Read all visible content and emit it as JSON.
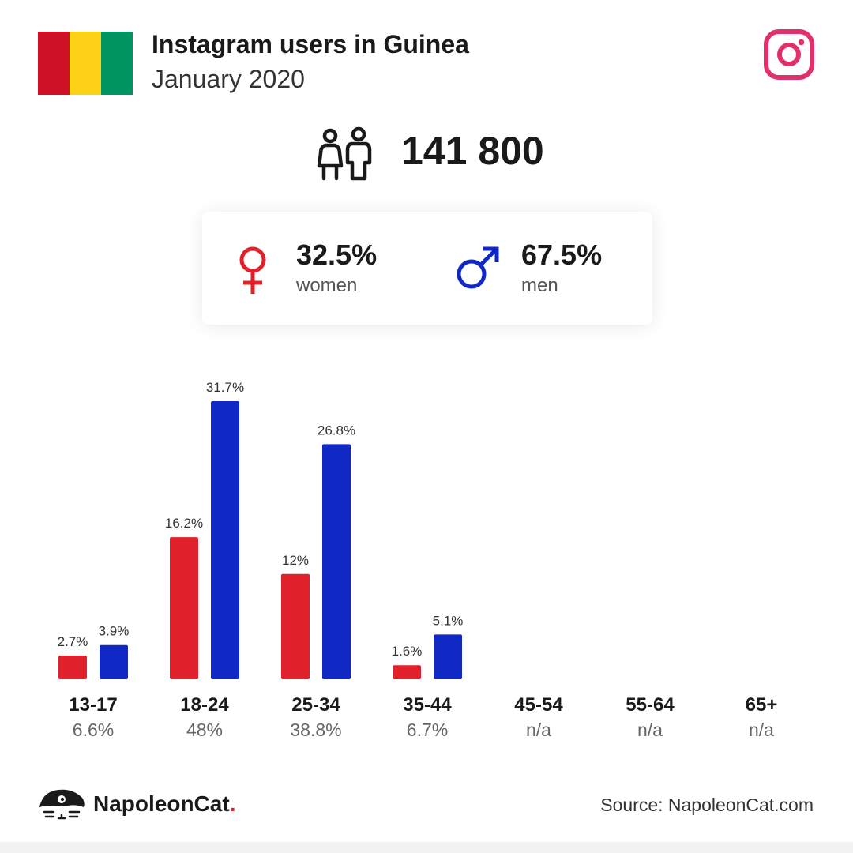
{
  "header": {
    "title": "Instagram users in Guinea",
    "subtitle": "January 2020",
    "flag_colors": [
      "#ce1126",
      "#fcd116",
      "#009460"
    ],
    "instagram_color": "#e1306c"
  },
  "total": {
    "value": "141 800",
    "icon": "people-icon"
  },
  "gender": {
    "women": {
      "pct": "32.5%",
      "label": "women",
      "icon": "female-icon",
      "color": "#e0202a"
    },
    "men": {
      "pct": "67.5%",
      "label": "men",
      "icon": "male-icon",
      "color": "#1029c4"
    }
  },
  "chart_data": {
    "type": "bar",
    "categories": [
      "13-17",
      "18-24",
      "25-34",
      "35-44",
      "45-54",
      "55-64",
      "65+"
    ],
    "category_totals": [
      "6.6%",
      "48%",
      "38.8%",
      "6.7%",
      "n/a",
      "n/a",
      "n/a"
    ],
    "series": [
      {
        "values": [
          2.7,
          16.2,
          12,
          1.6,
          null,
          null,
          null
        ],
        "labels": [
          "2.7%",
          "16.2%",
          "12%",
          "1.6%",
          "",
          "",
          ""
        ],
        "color": "#e0202a"
      },
      {
        "values": [
          3.9,
          31.7,
          26.8,
          5.1,
          null,
          null,
          null
        ],
        "labels": [
          "3.9%",
          "31.7%",
          "26.8%",
          "5.1%",
          "",
          "",
          ""
        ],
        "color": "#1029c4"
      }
    ],
    "title": "",
    "xlabel": "",
    "ylabel": "",
    "ylim": [
      0,
      31.7
    ],
    "grid": false
  },
  "footer": {
    "brand_name": "NapoleonCat",
    "brand_dot": ".",
    "source": "Source: NapoleonCat.com"
  }
}
